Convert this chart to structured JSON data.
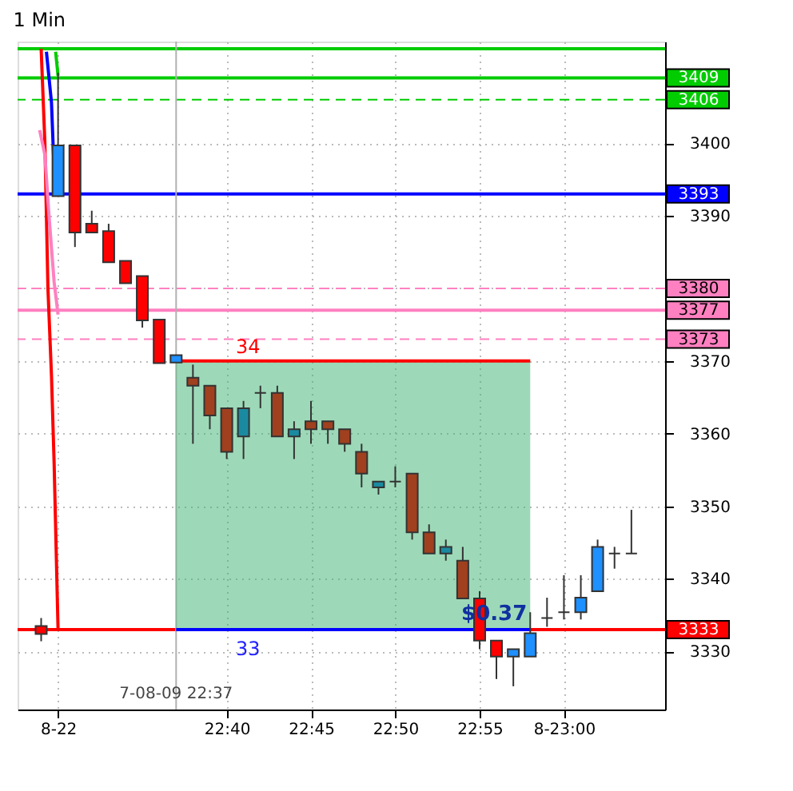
{
  "chart_data": {
    "type": "candlestick",
    "title": "1 Min",
    "x": [
      22.4833,
      22.5,
      22.5167,
      22.5333,
      22.55,
      22.5667,
      22.5833,
      22.6,
      22.6167,
      22.6333,
      22.65,
      22.6667,
      22.6833,
      22.7,
      22.7167,
      22.7333,
      22.75,
      22.7667,
      22.7833,
      22.8,
      22.8167,
      22.8333,
      22.85,
      22.8667,
      22.8833,
      22.9,
      22.9167,
      22.9333,
      22.95,
      22.9667,
      22.9833,
      23.0,
      23.0167,
      23.0333,
      23.05,
      23.0667
    ],
    "ohlc": [
      [
        3333.5,
        3334.6,
        3331.4,
        3332.4
      ],
      [
        3392.7,
        3409.7,
        3392.7,
        3399.7
      ],
      [
        3399.7,
        3399.7,
        3385.7,
        3387.7
      ],
      [
        3388.9,
        3390.7,
        3387.7,
        3387.7
      ],
      [
        3387.9,
        3388.9,
        3383.6,
        3383.6
      ],
      [
        3383.8,
        3383.8,
        3380.7,
        3380.7
      ],
      [
        3381.7,
        3381.7,
        3374.6,
        3375.6
      ],
      [
        3375.7,
        3375.7,
        3369.7,
        3369.7
      ],
      [
        3369.8,
        3370.8,
        3369.8,
        3370.8
      ],
      [
        3367.7,
        3369.5,
        3358.6,
        3366.6
      ],
      [
        3366.6,
        3366.6,
        3360.6,
        3362.5
      ],
      [
        3363.5,
        3363.5,
        3356.5,
        3357.5
      ],
      [
        3359.6,
        3364.5,
        3356.5,
        3363.5
      ],
      [
        3365.6,
        3366.6,
        3363.5,
        3365.6
      ],
      [
        3365.6,
        3366.6,
        3359.6,
        3359.6
      ],
      [
        3359.6,
        3361.7,
        3356.5,
        3360.6
      ],
      [
        3361.7,
        3364.5,
        3358.6,
        3360.6
      ],
      [
        3361.7,
        3361.7,
        3358.6,
        3360.6
      ],
      [
        3360.6,
        3360.6,
        3357.5,
        3358.6
      ],
      [
        3357.5,
        3358.6,
        3352.6,
        3354.5
      ],
      [
        3352.6,
        3353.4,
        3351.6,
        3353.4
      ],
      [
        3353.4,
        3355.5,
        3352.6,
        3353.4
      ],
      [
        3354.5,
        3354.5,
        3345.4,
        3346.4
      ],
      [
        3346.4,
        3347.5,
        3343.5,
        3343.5
      ],
      [
        3343.5,
        3345.4,
        3342.5,
        3344.4
      ],
      [
        3342.5,
        3344.4,
        3337.3,
        3337.3
      ],
      [
        3337.3,
        3338.3,
        3330.3,
        3331.5
      ],
      [
        3331.5,
        3331.5,
        3326.2,
        3329.3
      ],
      [
        3329.3,
        3330.3,
        3325.2,
        3330.3
      ],
      [
        3329.3,
        3335.4,
        3329.3,
        3332.5
      ],
      [
        3334.6,
        3337.4,
        3333.4,
        3334.6
      ],
      [
        3335.4,
        3340.5,
        3334.4,
        3335.4
      ],
      [
        3335.4,
        3340.5,
        3334.4,
        3337.4
      ],
      [
        3338.3,
        3345.4,
        3338.3,
        3344.4
      ],
      [
        3343.5,
        3344.4,
        3341.4,
        3343.5
      ],
      [
        3343.5,
        3349.5,
        3343.5,
        3343.5
      ]
    ],
    "colors": [
      "#ff0000",
      "#1e90ff",
      "#ff0000",
      "#ff0000",
      "#ff0000",
      "#ff0000",
      "#ff0000",
      "#ff0000",
      "#1e90ff",
      "#a0401e",
      "#a0401e",
      "#a0401e",
      "#1a8aa0",
      "#333333",
      "#a0401e",
      "#1a8aa0",
      "#a0401e",
      "#a0401e",
      "#a0401e",
      "#a0401e",
      "#1a8aa0",
      "#333333",
      "#a0401e",
      "#a0401e",
      "#1a8aa0",
      "#a0401e",
      "#ff0000",
      "#ff0000",
      "#1e90ff",
      "#1e90ff",
      "#333333",
      "#333333",
      "#1e90ff",
      "#1e90ff",
      "#333333",
      "#333333"
    ],
    "series": [
      {
        "type": "line",
        "color": "#ff0000",
        "x": [
          22.4833,
          22.487,
          22.49,
          22.4935,
          22.4961,
          22.5
        ],
        "values": [
          3413,
          3400,
          3380,
          3368,
          3356,
          3333
        ]
      },
      {
        "type": "line",
        "color": "#0000ff",
        "x": [
          22.4885,
          22.4935,
          22.497
        ],
        "values": [
          3412.6,
          3405.6,
          3393
        ]
      },
      {
        "type": "line",
        "color": "#00cc00",
        "x": [
          22.4976,
          22.5
        ],
        "values": [
          3412.6,
          3409.3
        ]
      },
      {
        "type": "line",
        "color": "#ff80c0",
        "x": [
          22.4818,
          22.487,
          22.491,
          22.4961,
          22.5
        ],
        "values": [
          3401.8,
          3398.4,
          3390.1,
          3380.9,
          3376.4
        ]
      },
      {
        "type": "line",
        "color": "#ff0000",
        "x": [
          22.6167,
          22.9667
        ],
        "values": [
          3370,
          3370
        ],
        "lower": [
          3333,
          3333
        ],
        "upper": [
          3370,
          3370
        ]
      },
      {
        "type": "line",
        "color": "#0000ff",
        "x": [
          22.6167,
          22.9667
        ],
        "values": [
          3333,
          3333
        ]
      }
    ],
    "ref_lines": [
      {
        "axis": "y",
        "value": 3413,
        "label": null,
        "color": "#00cc00",
        "line_style": "solid"
      },
      {
        "axis": "y",
        "value": 3409,
        "label": "3409",
        "color": "#00cc00",
        "line_style": "solid"
      },
      {
        "axis": "y",
        "value": 3406,
        "label": "3406",
        "color": "#00cc00",
        "line_style": "dashed"
      },
      {
        "axis": "y",
        "value": 3393,
        "label": "3393",
        "color": "#0000ff",
        "line_style": "solid"
      },
      {
        "axis": "y",
        "value": 3380,
        "label": "3380",
        "color": "#ff80c0",
        "line_style": "dashed"
      },
      {
        "axis": "y",
        "value": 3377,
        "label": "3377",
        "color": "#ff80c0",
        "line_style": "solid"
      },
      {
        "axis": "y",
        "value": 3373,
        "label": "3373",
        "color": "#ff80c0",
        "line_style": "dashed"
      },
      {
        "axis": "y",
        "value": 3333,
        "label": "3333",
        "color": "#ff0000",
        "line_style": "solid"
      },
      {
        "axis": "x",
        "value": 22.6167,
        "label": null,
        "color": "#b0b0b0",
        "line_style": "solid"
      }
    ],
    "annotations": [
      "34",
      "33",
      "$0.37",
      "7-08-09 22:37"
    ],
    "xlim": [
      22.46,
      23.1
    ],
    "ylim": [
      3322,
      3414
    ],
    "xticks": [
      {
        "value": 22.5,
        "label": "8-22"
      },
      {
        "value": 22.6667,
        "label": "22:40"
      },
      {
        "value": 22.75,
        "label": "22:45"
      },
      {
        "value": 22.8333,
        "label": "22:50"
      },
      {
        "value": 22.9167,
        "label": "22:55"
      },
      {
        "value": 23.0,
        "label": "8-23:00"
      }
    ],
    "yticks": [
      3330,
      3340,
      3350,
      3360,
      3370,
      {
        "value": 3380,
        "label": null
      },
      3390,
      3400
    ],
    "grid": true
  }
}
